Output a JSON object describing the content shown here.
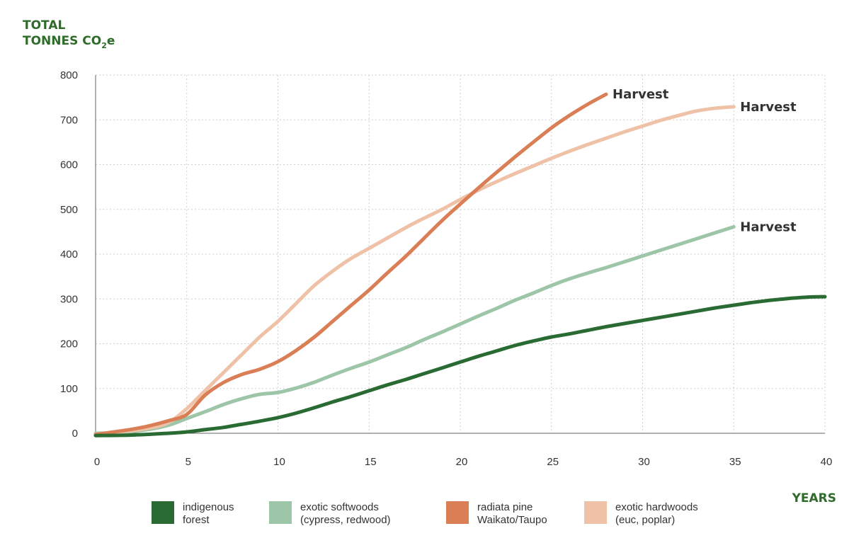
{
  "chart_data": {
    "type": "line",
    "ylabel": {
      "line1": "TOTAL",
      "line2_prefix": "TONNES CO",
      "line2_sub": "2",
      "line2_suffix": "e"
    },
    "xlabel": "YEARS",
    "xlim": [
      0,
      40
    ],
    "ylim": [
      0,
      800
    ],
    "xticks": [
      0,
      5,
      10,
      15,
      20,
      25,
      30,
      35,
      40
    ],
    "yticks": [
      0,
      100,
      200,
      300,
      400,
      500,
      600,
      700,
      800
    ],
    "grid": true,
    "legend_position": "bottom",
    "series": [
      {
        "id": "indigenous",
        "name_line1": "indigenous",
        "name_line2": "forest",
        "color": "#2a6b34",
        "points": [
          [
            0,
            -5
          ],
          [
            2,
            -4
          ],
          [
            4,
            0
          ],
          [
            5,
            3
          ],
          [
            6,
            8
          ],
          [
            7,
            13
          ],
          [
            8,
            20
          ],
          [
            9,
            27
          ],
          [
            10,
            35
          ],
          [
            11,
            45
          ],
          [
            12,
            57
          ],
          [
            13,
            70
          ],
          [
            14,
            82
          ],
          [
            15,
            95
          ],
          [
            16,
            108
          ],
          [
            17,
            120
          ],
          [
            18,
            133
          ],
          [
            19,
            146
          ],
          [
            20,
            159
          ],
          [
            21,
            172
          ],
          [
            22,
            184
          ],
          [
            23,
            196
          ],
          [
            24,
            206
          ],
          [
            25,
            215
          ],
          [
            26,
            222
          ],
          [
            27,
            230
          ],
          [
            28,
            238
          ],
          [
            29,
            245
          ],
          [
            30,
            252
          ],
          [
            31,
            259
          ],
          [
            32,
            266
          ],
          [
            33,
            273
          ],
          [
            34,
            280
          ],
          [
            35,
            286
          ],
          [
            36,
            292
          ],
          [
            37,
            297
          ],
          [
            38,
            301
          ],
          [
            39,
            304
          ],
          [
            40,
            305
          ]
        ]
      },
      {
        "id": "softwoods",
        "name_line1": "exotic softwoods",
        "name_line2": "(cypress, redwood)",
        "color": "#9dc5a7",
        "points": [
          [
            0,
            0
          ],
          [
            1,
            1
          ],
          [
            2,
            4
          ],
          [
            3,
            9
          ],
          [
            4,
            18
          ],
          [
            5,
            33
          ],
          [
            6,
            48
          ],
          [
            7,
            64
          ],
          [
            8,
            77
          ],
          [
            9,
            87
          ],
          [
            10,
            91
          ],
          [
            11,
            101
          ],
          [
            12,
            114
          ],
          [
            13,
            130
          ],
          [
            14,
            145
          ],
          [
            15,
            159
          ],
          [
            16,
            175
          ],
          [
            17,
            191
          ],
          [
            18,
            209
          ],
          [
            19,
            226
          ],
          [
            20,
            244
          ],
          [
            21,
            262
          ],
          [
            22,
            279
          ],
          [
            23,
            297
          ],
          [
            24,
            313
          ],
          [
            25,
            330
          ],
          [
            26,
            345
          ],
          [
            27,
            358
          ],
          [
            28,
            370
          ],
          [
            29,
            383
          ],
          [
            30,
            396
          ],
          [
            31,
            409
          ],
          [
            32,
            422
          ],
          [
            33,
            435
          ],
          [
            34,
            448
          ],
          [
            35,
            461
          ]
        ],
        "annotation": "Harvest"
      },
      {
        "id": "radiata",
        "name_line1": "radiata pine",
        "name_line2": "Waikato/Taupo",
        "color": "#d97e55",
        "points": [
          [
            0,
            -3
          ],
          [
            1,
            3
          ],
          [
            2,
            9
          ],
          [
            3,
            17
          ],
          [
            4,
            28
          ],
          [
            5,
            42
          ],
          [
            6,
            85
          ],
          [
            7,
            113
          ],
          [
            8,
            131
          ],
          [
            9,
            143
          ],
          [
            10,
            160
          ],
          [
            11,
            185
          ],
          [
            12,
            215
          ],
          [
            13,
            250
          ],
          [
            14,
            285
          ],
          [
            15,
            320
          ],
          [
            16,
            358
          ],
          [
            17,
            395
          ],
          [
            18,
            435
          ],
          [
            19,
            475
          ],
          [
            20,
            512
          ],
          [
            21,
            548
          ],
          [
            22,
            583
          ],
          [
            23,
            617
          ],
          [
            24,
            650
          ],
          [
            25,
            682
          ],
          [
            26,
            710
          ],
          [
            27,
            735
          ],
          [
            28,
            757
          ]
        ],
        "annotation": "Harvest"
      },
      {
        "id": "hardwoods",
        "name_line1": "exotic hardwoods",
        "name_line2": "(euc, poplar)",
        "color": "#efc1a7",
        "points": [
          [
            0,
            -2
          ],
          [
            1,
            2
          ],
          [
            2,
            6
          ],
          [
            3,
            12
          ],
          [
            4,
            24
          ],
          [
            5,
            55
          ],
          [
            6,
            95
          ],
          [
            7,
            135
          ],
          [
            8,
            175
          ],
          [
            9,
            215
          ],
          [
            10,
            250
          ],
          [
            11,
            290
          ],
          [
            12,
            330
          ],
          [
            13,
            362
          ],
          [
            14,
            390
          ],
          [
            15,
            413
          ],
          [
            16,
            436
          ],
          [
            17,
            459
          ],
          [
            18,
            480
          ],
          [
            19,
            500
          ],
          [
            20,
            522
          ],
          [
            21,
            543
          ],
          [
            22,
            562
          ],
          [
            23,
            580
          ],
          [
            24,
            597
          ],
          [
            25,
            614
          ],
          [
            26,
            630
          ],
          [
            27,
            645
          ],
          [
            28,
            659
          ],
          [
            29,
            673
          ],
          [
            30,
            686
          ],
          [
            31,
            699
          ],
          [
            32,
            710
          ],
          [
            33,
            720
          ],
          [
            34,
            726
          ],
          [
            35,
            729
          ]
        ],
        "annotation": "Harvest"
      }
    ]
  }
}
